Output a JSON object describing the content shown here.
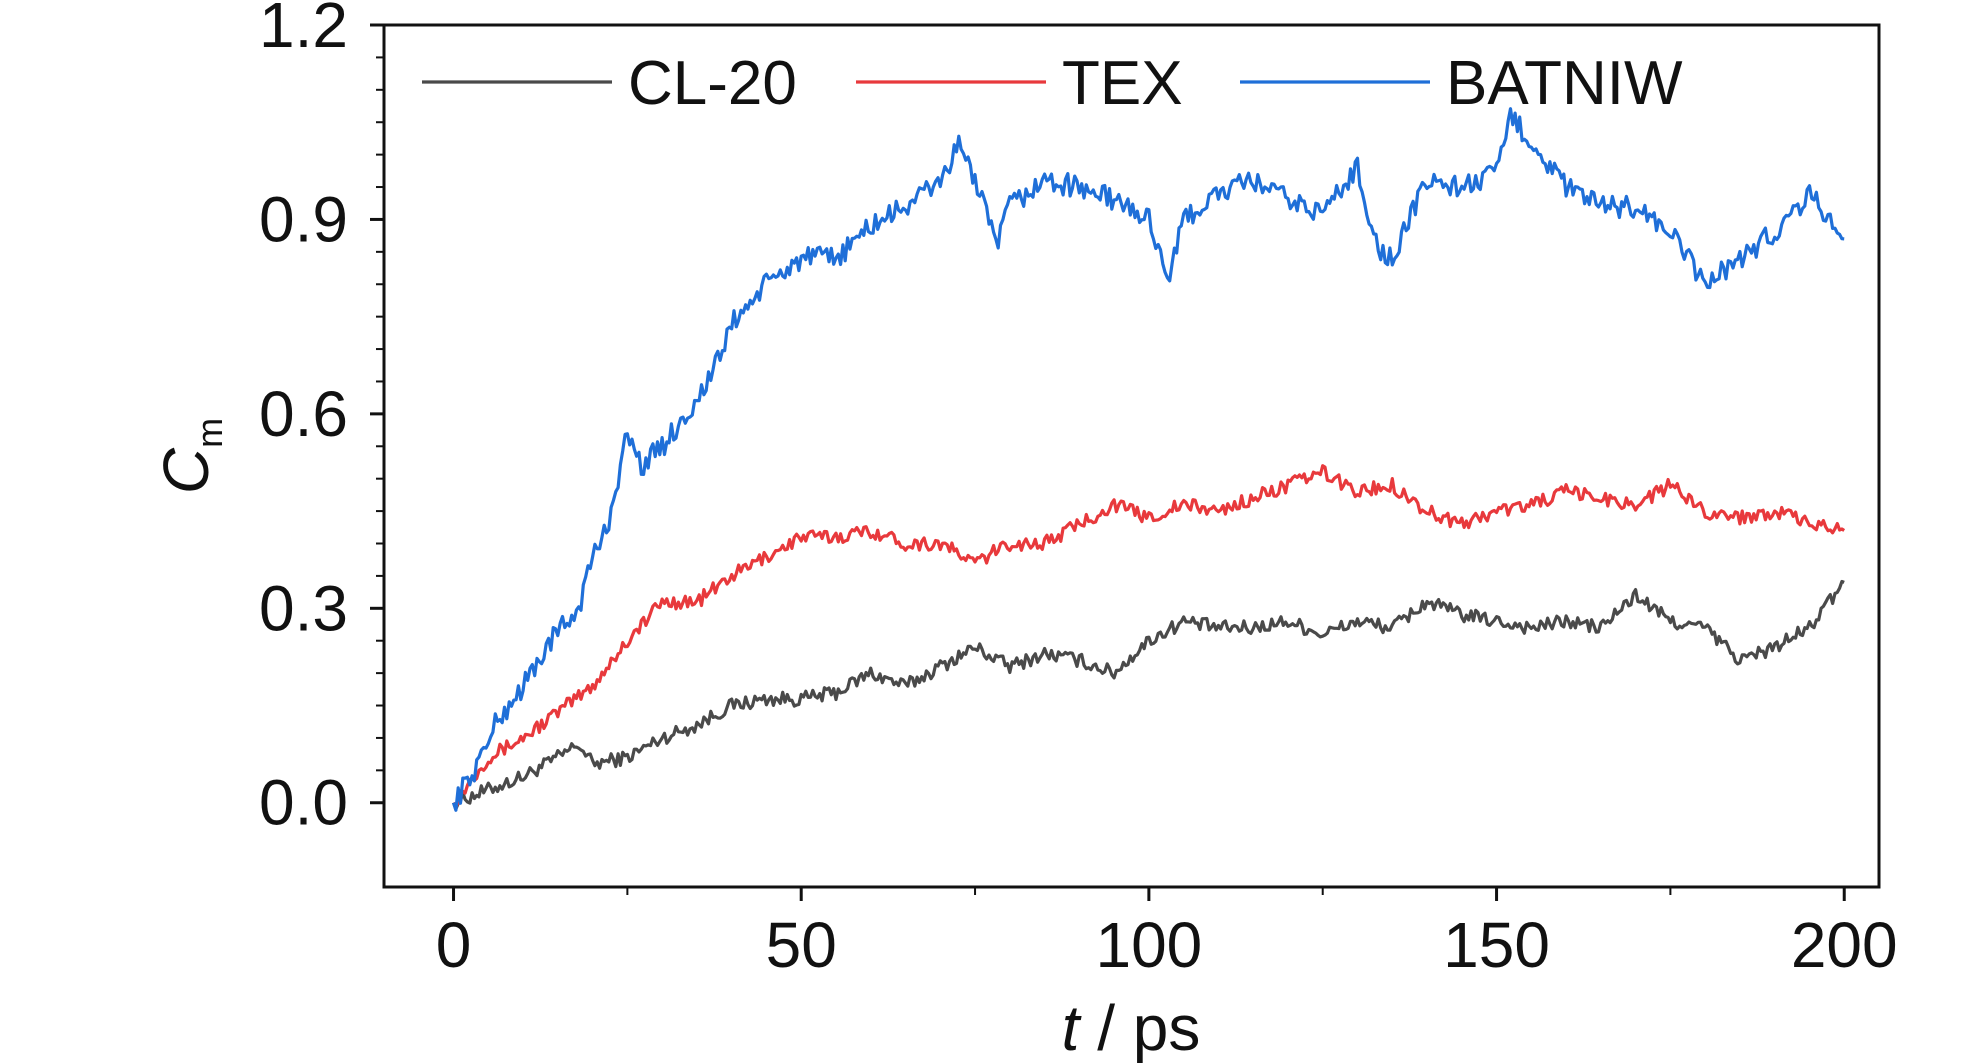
{
  "chart_data": {
    "type": "line",
    "title": "",
    "xlabel_italic": "t",
    "xlabel_rest": " / ps",
    "ylabel_main": "C",
    "ylabel_sub": "m",
    "xlim": [
      -10,
      205
    ],
    "ylim": [
      -0.13,
      1.2
    ],
    "x_ticks": [
      0,
      50,
      100,
      150,
      200
    ],
    "x_tick_labels": [
      "0",
      "50",
      "100",
      "150",
      "200"
    ],
    "y_ticks": [
      0.0,
      0.3,
      0.6,
      0.9,
      1.2
    ],
    "y_tick_labels": [
      "0.0",
      "0.3",
      "0.6",
      "0.9",
      "1.2"
    ],
    "grid": false,
    "legend_position": "top",
    "series": [
      {
        "name": "CL-20",
        "color": "#4a4a4a",
        "x": [
          0,
          5,
          10,
          15,
          18,
          20,
          25,
          30,
          35,
          40,
          45,
          50,
          55,
          60,
          65,
          70,
          75,
          80,
          85,
          90,
          95,
          100,
          105,
          110,
          115,
          120,
          125,
          130,
          135,
          140,
          145,
          150,
          155,
          160,
          165,
          170,
          175,
          180,
          185,
          190,
          195,
          200
        ],
        "values": [
          0.0,
          0.02,
          0.04,
          0.07,
          0.09,
          0.06,
          0.07,
          0.1,
          0.12,
          0.15,
          0.16,
          0.16,
          0.17,
          0.2,
          0.18,
          0.21,
          0.24,
          0.21,
          0.23,
          0.22,
          0.2,
          0.25,
          0.28,
          0.27,
          0.27,
          0.28,
          0.26,
          0.28,
          0.27,
          0.31,
          0.29,
          0.28,
          0.27,
          0.28,
          0.27,
          0.32,
          0.28,
          0.27,
          0.22,
          0.24,
          0.27,
          0.34
        ]
      },
      {
        "name": "TEX",
        "color": "#e8393c",
        "x": [
          0,
          5,
          10,
          15,
          20,
          25,
          30,
          35,
          40,
          45,
          50,
          55,
          60,
          65,
          70,
          75,
          80,
          85,
          90,
          95,
          100,
          105,
          110,
          115,
          120,
          125,
          130,
          135,
          140,
          145,
          150,
          155,
          160,
          165,
          170,
          175,
          180,
          185,
          190,
          195,
          200
        ],
        "values": [
          0.0,
          0.07,
          0.1,
          0.14,
          0.18,
          0.25,
          0.31,
          0.31,
          0.35,
          0.38,
          0.41,
          0.41,
          0.42,
          0.4,
          0.4,
          0.37,
          0.4,
          0.4,
          0.43,
          0.46,
          0.44,
          0.46,
          0.45,
          0.47,
          0.49,
          0.51,
          0.48,
          0.49,
          0.45,
          0.43,
          0.45,
          0.46,
          0.48,
          0.47,
          0.46,
          0.49,
          0.45,
          0.44,
          0.45,
          0.43,
          0.42
        ]
      },
      {
        "name": "BATNIW",
        "color": "#1f6fd8",
        "x": [
          0,
          3,
          6,
          10,
          14,
          18,
          20,
          22,
          25,
          27,
          30,
          35,
          38,
          40,
          45,
          50,
          55,
          60,
          65,
          70,
          73,
          75,
          78,
          80,
          85,
          90,
          95,
          100,
          103,
          105,
          110,
          115,
          120,
          125,
          130,
          133,
          135,
          140,
          145,
          150,
          152,
          155,
          160,
          165,
          170,
          175,
          180,
          185,
          190,
          195,
          200
        ],
        "values": [
          0.0,
          0.05,
          0.12,
          0.18,
          0.25,
          0.3,
          0.38,
          0.42,
          0.57,
          0.52,
          0.55,
          0.62,
          0.68,
          0.74,
          0.8,
          0.84,
          0.84,
          0.89,
          0.92,
          0.96,
          1.02,
          0.96,
          0.86,
          0.92,
          0.96,
          0.95,
          0.93,
          0.9,
          0.81,
          0.9,
          0.94,
          0.96,
          0.93,
          0.91,
          0.98,
          0.85,
          0.84,
          0.96,
          0.95,
          0.97,
          1.06,
          1.02,
          0.95,
          0.92,
          0.92,
          0.88,
          0.8,
          0.84,
          0.88,
          0.94,
          0.87
        ]
      }
    ]
  }
}
